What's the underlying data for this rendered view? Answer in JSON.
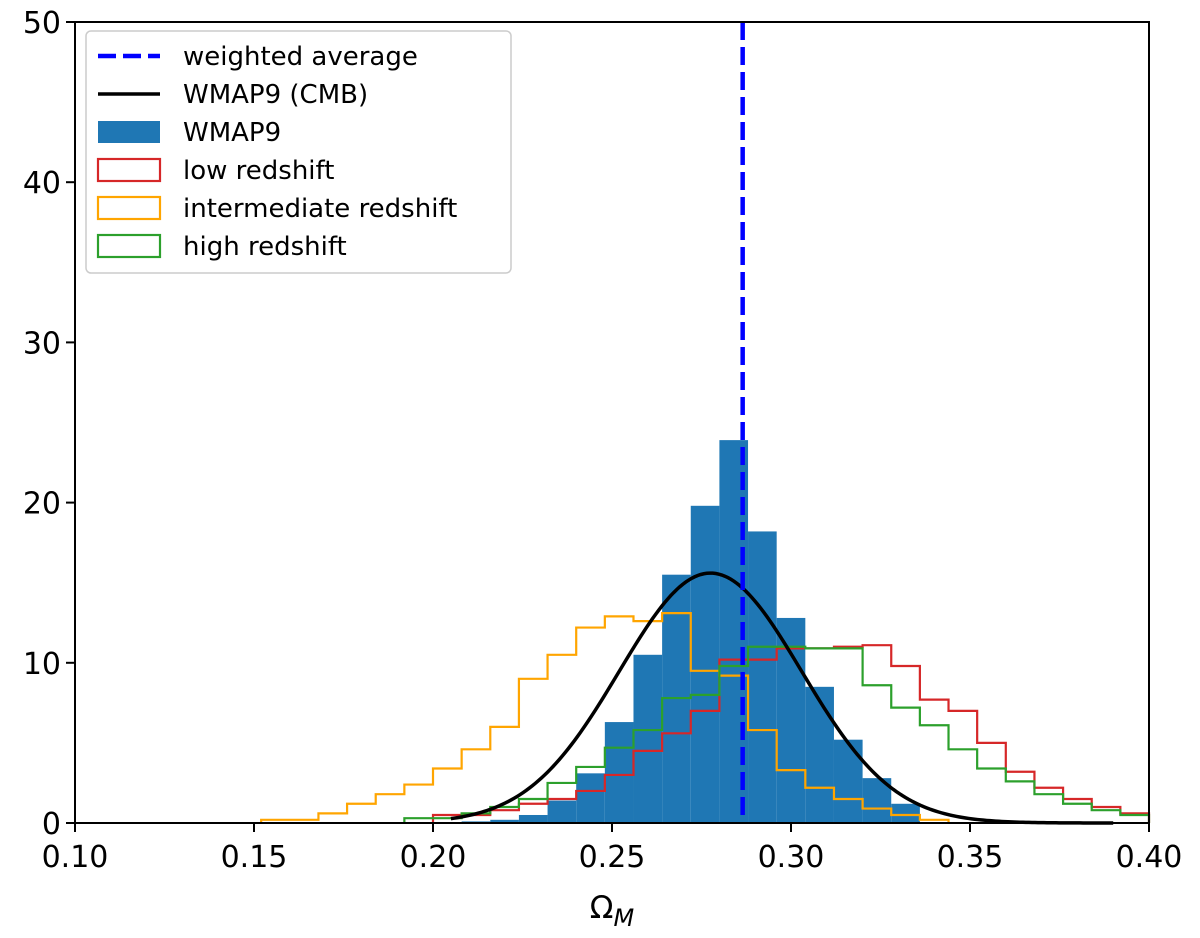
{
  "chart_data": {
    "type": "histogram",
    "xlabel": "Ω",
    "xlabel_subscript": "M",
    "ylabel": "",
    "xlim": [
      0.1,
      0.4
    ],
    "ylim": [
      0,
      50
    ],
    "x_ticks": [
      "0.10",
      "0.15",
      "0.20",
      "0.25",
      "0.30",
      "0.35",
      "0.40"
    ],
    "y_ticks": [
      "0",
      "10",
      "20",
      "30",
      "40",
      "50"
    ],
    "grid": false,
    "legend_position": "top-left",
    "legend": [
      {
        "key": "weighted_average",
        "label": "weighted average",
        "style": "dashed-line",
        "color": "#0000ff"
      },
      {
        "key": "wmap_cmb",
        "label": "WMAP9 (CMB)",
        "style": "line",
        "color": "#000000"
      },
      {
        "key": "wmap_hist",
        "label": "WMAP9",
        "style": "filled",
        "color": "#1f77b4"
      },
      {
        "key": "low",
        "label": "low redshift",
        "style": "step",
        "color": "#d62728"
      },
      {
        "key": "intermediate",
        "label": "intermediate redshift",
        "style": "step",
        "color": "#ffa500"
      },
      {
        "key": "high",
        "label": "high redshift",
        "style": "step",
        "color": "#2ca02c"
      }
    ],
    "weighted_average_x": 0.2865,
    "filled_histogram": {
      "edges": [
        0.2,
        0.208,
        0.216,
        0.224,
        0.232,
        0.24,
        0.248,
        0.256,
        0.264,
        0.272,
        0.28,
        0.288,
        0.296,
        0.304,
        0.312,
        0.32,
        0.328,
        0.336
      ],
      "values": [
        0,
        0.1,
        0.2,
        0.5,
        1.4,
        3.1,
        6.3,
        10.5,
        15.5,
        19.8,
        23.9,
        18.2,
        12.8,
        8.5,
        5.2,
        2.8,
        1.2
      ]
    },
    "step_histograms": [
      {
        "key": "low",
        "edges": [
          0.2,
          0.216,
          0.224,
          0.232,
          0.24,
          0.248,
          0.256,
          0.264,
          0.272,
          0.28,
          0.296,
          0.312,
          0.32,
          0.328,
          0.336,
          0.344,
          0.352,
          0.36,
          0.368,
          0.376,
          0.384,
          0.392,
          0.4
        ],
        "values": [
          0.5,
          0.8,
          1.2,
          1.5,
          2.0,
          3.0,
          4.5,
          5.6,
          7.0,
          10.2,
          10.9,
          11.0,
          11.1,
          9.8,
          7.7,
          7.0,
          5.0,
          3.2,
          2.2,
          1.5,
          1.0,
          0.6
        ]
      },
      {
        "key": "intermediate",
        "edges": [
          0.152,
          0.168,
          0.176,
          0.184,
          0.192,
          0.2,
          0.208,
          0.216,
          0.224,
          0.232,
          0.24,
          0.248,
          0.256,
          0.264,
          0.272,
          0.28,
          0.288,
          0.296,
          0.304,
          0.312,
          0.32,
          0.328,
          0.336,
          0.344
        ],
        "values": [
          0.2,
          0.6,
          1.2,
          1.8,
          2.4,
          3.4,
          4.6,
          6.0,
          9.0,
          10.5,
          12.2,
          12.9,
          12.6,
          13.1,
          9.5,
          9.2,
          5.8,
          3.3,
          2.2,
          1.5,
          0.9,
          0.5,
          0.2
        ]
      },
      {
        "key": "high",
        "edges": [
          0.192,
          0.208,
          0.216,
          0.224,
          0.232,
          0.24,
          0.248,
          0.256,
          0.264,
          0.272,
          0.28,
          0.288,
          0.304,
          0.32,
          0.328,
          0.336,
          0.344,
          0.352,
          0.36,
          0.368,
          0.376,
          0.384,
          0.392,
          0.4
        ],
        "values": [
          0.3,
          0.6,
          1.0,
          1.5,
          2.5,
          3.5,
          4.7,
          5.8,
          7.8,
          8.0,
          9.8,
          11.0,
          10.9,
          8.6,
          7.2,
          6.1,
          4.6,
          3.4,
          2.6,
          1.8,
          1.2,
          0.8,
          0.5
        ]
      }
    ],
    "cmb_curve": {
      "mean": 0.2775,
      "sigma": 0.0255,
      "peak": 15.6,
      "x_range": [
        0.205,
        0.39
      ]
    }
  }
}
